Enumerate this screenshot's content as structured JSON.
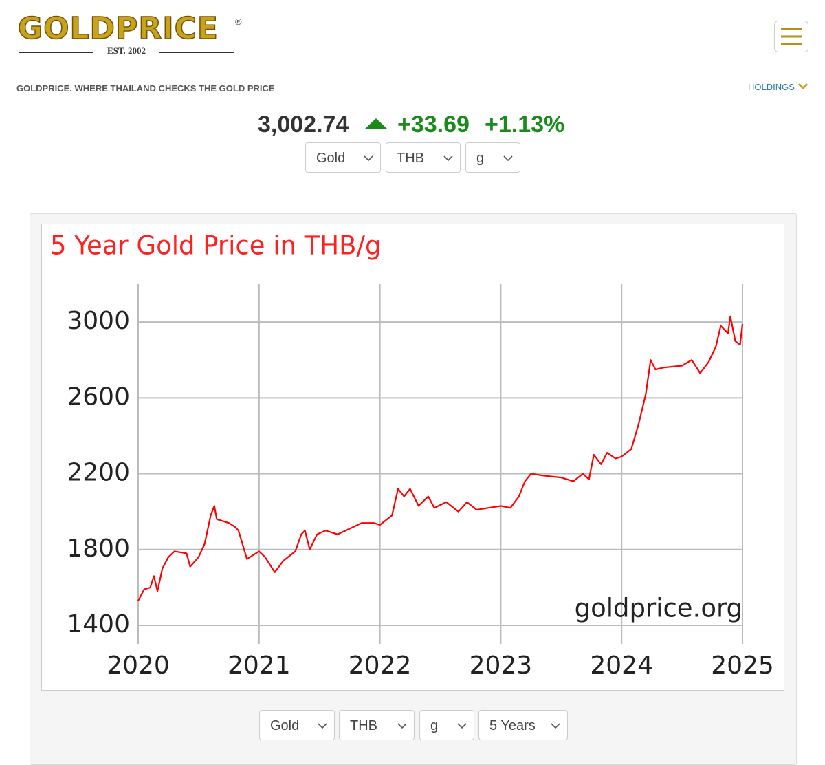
{
  "header": {
    "logo": "GOLDPRICE",
    "logo_mark": "®",
    "logo_sub": "EST. 2002",
    "tagline": "GOLDPRICE. WHERE THAILAND CHECKS THE GOLD PRICE",
    "holdings": "HOLDINGS"
  },
  "ticker": {
    "price": "3,002.74",
    "change": "+33.69",
    "change_pct": "+1.13%"
  },
  "selectors_top": [
    "Gold",
    "THB",
    "g"
  ],
  "chart_data": {
    "type": "line",
    "title": "5 Year Gold Price in THB/g",
    "watermark": "goldprice.org",
    "x": [
      2020.0,
      2020.05,
      2020.1,
      2020.13,
      2020.16,
      2020.2,
      2020.25,
      2020.3,
      2020.4,
      2020.43,
      2020.5,
      2020.55,
      2020.6,
      2020.63,
      2020.65,
      2020.75,
      2020.8,
      2020.83,
      2020.9,
      2021.0,
      2021.05,
      2021.13,
      2021.2,
      2021.3,
      2021.35,
      2021.38,
      2021.42,
      2021.48,
      2021.55,
      2021.65,
      2021.75,
      2021.85,
      2021.95,
      2022.0,
      2022.1,
      2022.15,
      2022.2,
      2022.25,
      2022.32,
      2022.4,
      2022.45,
      2022.55,
      2022.65,
      2022.72,
      2022.8,
      2022.9,
      2023.0,
      2023.08,
      2023.15,
      2023.2,
      2023.25,
      2023.35,
      2023.5,
      2023.6,
      2023.68,
      2023.73,
      2023.77,
      2023.83,
      2023.88,
      2023.95,
      2024.0,
      2024.08,
      2024.14,
      2024.2,
      2024.24,
      2024.28,
      2024.35,
      2024.5,
      2024.58,
      2024.65,
      2024.72,
      2024.78,
      2024.82,
      2024.88,
      2024.9,
      2024.94,
      2024.98,
      2025.0
    ],
    "series": [
      {
        "name": "Gold",
        "color": "#ff0000",
        "values": [
          1530,
          1590,
          1600,
          1660,
          1580,
          1700,
          1760,
          1790,
          1780,
          1710,
          1760,
          1830,
          1980,
          2030,
          1960,
          1940,
          1920,
          1900,
          1750,
          1790,
          1760,
          1680,
          1740,
          1790,
          1880,
          1900,
          1800,
          1880,
          1900,
          1880,
          1910,
          1940,
          1940,
          1930,
          1980,
          2120,
          2080,
          2120,
          2030,
          2080,
          2020,
          2050,
          2000,
          2050,
          2010,
          2020,
          2030,
          2020,
          2080,
          2160,
          2200,
          2190,
          2180,
          2160,
          2200,
          2170,
          2300,
          2250,
          2310,
          2280,
          2290,
          2330,
          2460,
          2620,
          2800,
          2750,
          2760,
          2770,
          2800,
          2730,
          2790,
          2870,
          2980,
          2940,
          3030,
          2900,
          2880,
          2990
        ]
      }
    ],
    "xlim": [
      2020,
      2025
    ],
    "xticks": [
      2020,
      2021,
      2022,
      2023,
      2024,
      2025
    ],
    "ylim": [
      1400,
      3200
    ],
    "yticks": [
      1400,
      1800,
      2200,
      2600,
      3000
    ],
    "grid": true
  },
  "selectors_bottom": [
    "Gold",
    "THB",
    "g",
    "5 Years"
  ]
}
